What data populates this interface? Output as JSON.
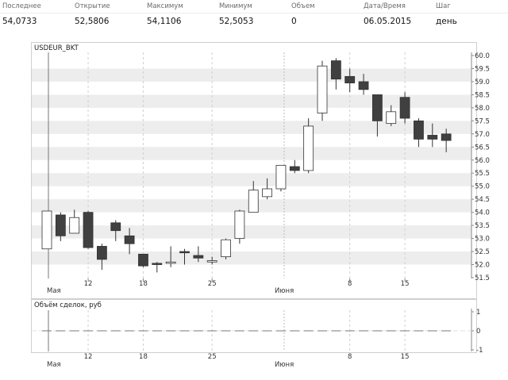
{
  "quote": {
    "headers": [
      "Последнее",
      "Открытие",
      "Максимум",
      "Минимум",
      "Объем",
      "Дата/Время",
      "Шаг"
    ],
    "values": [
      "54,0733",
      "52,5806",
      "54,1106",
      "52,5053",
      "0",
      "06.05.2015",
      "день"
    ]
  },
  "colors": {
    "bear": "#404040",
    "bull": "#ffffff",
    "grid_band": "#ededed",
    "axis": "#888888"
  },
  "chart_data": [
    {
      "type": "candlestick",
      "title": "USDEUR_BKT",
      "ylim": [
        51.5,
        60.0
      ],
      "yticks": [
        "60.0",
        "59.5",
        "59.0",
        "58.5",
        "58.0",
        "57.5",
        "57.0",
        "56.5",
        "56.0",
        "55.5",
        "55.0",
        "54.5",
        "54.0",
        "53.5",
        "53.0",
        "52.5",
        "52.0",
        "51.5"
      ],
      "x_ticks": [
        "12",
        "18",
        "25",
        "8",
        "15"
      ],
      "x_month_labels": [
        "Мая",
        "Июня"
      ],
      "candles": [
        {
          "date": "06.05",
          "open": 52.6,
          "high": 54.05,
          "low": 52.6,
          "close": 54.05
        },
        {
          "date": "07.05",
          "open": 53.9,
          "high": 54.0,
          "low": 52.9,
          "close": 53.1
        },
        {
          "date": "08.05",
          "open": 53.2,
          "high": 54.1,
          "low": 53.2,
          "close": 53.8
        },
        {
          "date": "12.05",
          "open": 54.0,
          "high": 54.05,
          "low": 52.6,
          "close": 52.65
        },
        {
          "date": "13.05",
          "open": 52.7,
          "high": 52.8,
          "low": 51.8,
          "close": 52.2
        },
        {
          "date": "14.05",
          "open": 53.6,
          "high": 53.7,
          "low": 52.9,
          "close": 53.3
        },
        {
          "date": "15.05",
          "open": 53.1,
          "high": 53.4,
          "low": 52.4,
          "close": 52.8
        },
        {
          "date": "18.05",
          "open": 52.4,
          "high": 52.4,
          "low": 51.9,
          "close": 51.95
        },
        {
          "date": "19.05",
          "open": 52.05,
          "high": 52.1,
          "low": 51.7,
          "close": 52.0
        },
        {
          "date": "20.05",
          "open": 52.05,
          "high": 52.7,
          "low": 51.9,
          "close": 52.1
        },
        {
          "date": "21.05",
          "open": 52.5,
          "high": 52.6,
          "low": 52.0,
          "close": 52.45
        },
        {
          "date": "22.05",
          "open": 52.35,
          "high": 52.7,
          "low": 52.1,
          "close": 52.25
        },
        {
          "date": "25.05",
          "open": 52.1,
          "high": 52.3,
          "low": 52.0,
          "close": 52.15
        },
        {
          "date": "26.05",
          "open": 52.3,
          "high": 53.0,
          "low": 52.2,
          "close": 52.95
        },
        {
          "date": "27.05",
          "open": 53.0,
          "high": 54.1,
          "low": 52.8,
          "close": 54.05
        },
        {
          "date": "28.05",
          "open": 54.0,
          "high": 55.2,
          "low": 54.0,
          "close": 54.85
        },
        {
          "date": "29.05",
          "open": 54.6,
          "high": 55.3,
          "low": 54.5,
          "close": 54.9
        },
        {
          "date": "01.06",
          "open": 54.9,
          "high": 55.8,
          "low": 54.8,
          "close": 55.8
        },
        {
          "date": "02.06",
          "open": 55.75,
          "high": 56.0,
          "low": 55.5,
          "close": 55.6
        },
        {
          "date": "03.06",
          "open": 55.6,
          "high": 57.6,
          "low": 55.5,
          "close": 57.3
        },
        {
          "date": "04.06",
          "open": 57.8,
          "high": 59.8,
          "low": 57.5,
          "close": 59.6
        },
        {
          "date": "05.06",
          "open": 59.8,
          "high": 59.9,
          "low": 58.7,
          "close": 59.1
        },
        {
          "date": "08.06",
          "open": 59.2,
          "high": 59.5,
          "low": 58.6,
          "close": 58.95
        },
        {
          "date": "09.06",
          "open": 59.0,
          "high": 59.3,
          "low": 58.5,
          "close": 58.7
        },
        {
          "date": "10.06",
          "open": 58.5,
          "high": 58.5,
          "low": 56.9,
          "close": 57.5
        },
        {
          "date": "11.06",
          "open": 57.4,
          "high": 58.1,
          "low": 57.3,
          "close": 57.85
        },
        {
          "date": "15.06",
          "open": 58.4,
          "high": 58.6,
          "low": 57.4,
          "close": 57.6
        },
        {
          "date": "16.06",
          "open": 57.5,
          "high": 57.6,
          "low": 56.5,
          "close": 56.8
        },
        {
          "date": "17.06",
          "open": 56.95,
          "high": 57.4,
          "low": 56.5,
          "close": 56.8
        },
        {
          "date": "18.06",
          "open": 57.0,
          "high": 57.2,
          "low": 56.3,
          "close": 56.75
        }
      ]
    },
    {
      "type": "bar",
      "title": "Объём сделок, руб",
      "ylim": [
        -1,
        1
      ],
      "yticks": [
        "1",
        "0",
        "-1"
      ],
      "x_ticks": [
        "12",
        "18",
        "25",
        "8",
        "15"
      ],
      "x_month_labels": [
        "Мая",
        "Июня"
      ],
      "values": [
        0,
        0,
        0,
        0,
        0,
        0,
        0,
        0,
        0,
        0,
        0,
        0,
        0,
        0,
        0,
        0,
        0,
        0,
        0,
        0,
        0,
        0,
        0,
        0,
        0,
        0,
        0,
        0,
        0,
        0
      ]
    }
  ]
}
